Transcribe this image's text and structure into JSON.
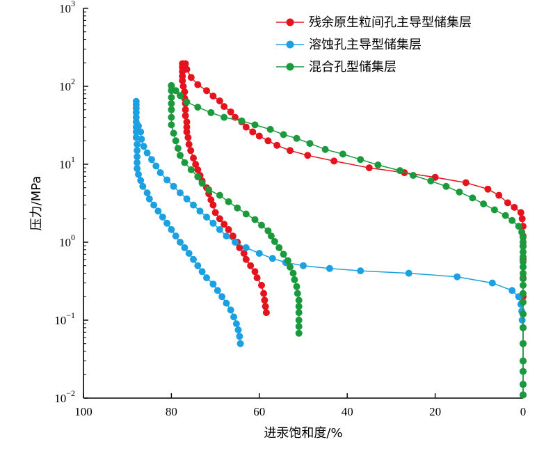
{
  "chart_data": {
    "type": "line",
    "xlabel": "进汞饱和度/%",
    "ylabel": "压力/MPa",
    "x_axis": {
      "min": 0,
      "max": 100,
      "reversed": true,
      "ticks": [
        100,
        80,
        60,
        40,
        20,
        0
      ]
    },
    "y_axis": {
      "scale": "log",
      "min": 0.01,
      "max": 1000,
      "ticks": [
        {
          "value": 0.01,
          "base": "10",
          "exp": "−2"
        },
        {
          "value": 0.1,
          "base": "10",
          "exp": "−1"
        },
        {
          "value": 1,
          "base": "10",
          "exp": "0"
        },
        {
          "value": 10,
          "base": "10",
          "exp": "1"
        },
        {
          "value": 100,
          "base": "10",
          "exp": "2"
        },
        {
          "value": 1000,
          "base": "10",
          "exp": "3"
        }
      ]
    },
    "grid": false,
    "legend_position": "top-right",
    "series": [
      {
        "name": "残余原生粒间孔主导型储集层",
        "color": "#e3141e",
        "intrusion": [
          [
            0,
            0.011
          ],
          [
            0,
            0.015
          ],
          [
            0,
            0.022
          ],
          [
            0,
            0.03
          ],
          [
            0,
            0.05
          ],
          [
            0,
            0.08
          ],
          [
            0,
            0.12
          ],
          [
            0,
            0.2
          ],
          [
            0,
            0.35
          ],
          [
            0,
            0.6
          ],
          [
            0,
            0.9
          ],
          [
            0,
            1.2
          ],
          [
            0,
            1.6
          ],
          [
            0.2,
            2.0
          ],
          [
            0.5,
            2.4
          ],
          [
            2,
            2.8
          ],
          [
            3.5,
            3.2
          ],
          [
            5.5,
            4.0
          ],
          [
            8,
            4.8
          ],
          [
            13,
            5.8
          ],
          [
            20,
            6.8
          ],
          [
            27,
            7.8
          ],
          [
            35,
            9.0
          ],
          [
            43,
            11
          ],
          [
            49,
            13
          ],
          [
            53,
            15
          ],
          [
            56,
            17.5
          ],
          [
            58,
            20
          ],
          [
            60,
            23
          ],
          [
            61.5,
            26
          ],
          [
            63,
            30
          ],
          [
            64,
            35
          ],
          [
            65.5,
            40
          ],
          [
            66.5,
            47
          ],
          [
            68,
            55
          ],
          [
            69,
            65
          ],
          [
            70.5,
            75
          ],
          [
            72,
            88
          ],
          [
            74,
            105
          ],
          [
            75.5,
            130
          ],
          [
            76.5,
            165
          ],
          [
            76.8,
            195
          ]
        ],
        "extrusion": [
          [
            77.5,
            195
          ],
          [
            77.5,
            175
          ],
          [
            77.5,
            155
          ],
          [
            77.5,
            135
          ],
          [
            77.5,
            118
          ],
          [
            77.3,
            100
          ],
          [
            77,
            85
          ],
          [
            77,
            70
          ],
          [
            76.8,
            60
          ],
          [
            76.8,
            50
          ],
          [
            76.8,
            42
          ],
          [
            76.5,
            35
          ],
          [
            76.5,
            30
          ],
          [
            76.5,
            26
          ],
          [
            76.2,
            22
          ],
          [
            76,
            18
          ],
          [
            75.6,
            15
          ],
          [
            75,
            12
          ],
          [
            74.5,
            10
          ],
          [
            74,
            8.5
          ],
          [
            73.5,
            7.2
          ],
          [
            73,
            6.1
          ],
          [
            72,
            5
          ],
          [
            71.5,
            4.2
          ],
          [
            71,
            3.5
          ],
          [
            70.5,
            3.0
          ],
          [
            70,
            2.4
          ],
          [
            69,
            2.0
          ],
          [
            68,
            1.7
          ],
          [
            67,
            1.45
          ],
          [
            66,
            1.2
          ],
          [
            65,
            1.0
          ],
          [
            64.5,
            0.85
          ],
          [
            63.5,
            0.72
          ],
          [
            63,
            0.6
          ],
          [
            62,
            0.5
          ],
          [
            61,
            0.42
          ],
          [
            60.5,
            0.35
          ],
          [
            59.5,
            0.28
          ],
          [
            59,
            0.22
          ],
          [
            58.8,
            0.18
          ],
          [
            58.6,
            0.15
          ],
          [
            58.4,
            0.125
          ]
        ]
      },
      {
        "name": "溶蚀孔主导型储集层",
        "color": "#1ba1e2",
        "intrusion": [
          [
            0,
            0.011
          ],
          [
            0,
            0.015
          ],
          [
            0,
            0.022
          ],
          [
            0,
            0.03
          ],
          [
            0,
            0.05
          ],
          [
            0,
            0.08
          ],
          [
            0.2,
            0.1
          ],
          [
            0.3,
            0.13
          ],
          [
            0.5,
            0.16
          ],
          [
            1,
            0.2
          ],
          [
            2.5,
            0.24
          ],
          [
            7,
            0.3
          ],
          [
            15,
            0.36
          ],
          [
            26,
            0.4
          ],
          [
            37,
            0.43
          ],
          [
            44,
            0.46
          ],
          [
            50,
            0.5
          ],
          [
            54,
            0.55
          ],
          [
            57,
            0.62
          ],
          [
            60,
            0.72
          ],
          [
            63,
            0.85
          ],
          [
            65.5,
            1.0
          ],
          [
            67.5,
            1.2
          ],
          [
            69,
            1.45
          ],
          [
            70.5,
            1.75
          ],
          [
            72,
            2.1
          ],
          [
            73.5,
            2.5
          ],
          [
            75,
            3.0
          ],
          [
            76.5,
            3.6
          ],
          [
            78,
            4.3
          ],
          [
            79.5,
            5.2
          ],
          [
            81,
            6.3
          ],
          [
            82.5,
            7.8
          ],
          [
            83.5,
            9.5
          ],
          [
            84.5,
            11.5
          ],
          [
            85.5,
            14
          ],
          [
            86.3,
            17
          ],
          [
            86.8,
            21
          ],
          [
            87,
            26
          ],
          [
            87.5,
            31
          ]
        ],
        "extrusion": [
          [
            88,
            64
          ],
          [
            88,
            58
          ],
          [
            88,
            52
          ],
          [
            88,
            46
          ],
          [
            88,
            40
          ],
          [
            88,
            35
          ],
          [
            88,
            30
          ],
          [
            88,
            26
          ],
          [
            88,
            22
          ],
          [
            87.8,
            18
          ],
          [
            87.8,
            15
          ],
          [
            87.8,
            12.5
          ],
          [
            87.8,
            10.5
          ],
          [
            87.8,
            8.8
          ],
          [
            87.5,
            7.4
          ],
          [
            87,
            6.2
          ],
          [
            86.5,
            5.2
          ],
          [
            85.5,
            4.3
          ],
          [
            85,
            3.6
          ],
          [
            84,
            3.0
          ],
          [
            83,
            2.5
          ],
          [
            82,
            2.1
          ],
          [
            81,
            1.75
          ],
          [
            80,
            1.45
          ],
          [
            79,
            1.2
          ],
          [
            78,
            1.0
          ],
          [
            77,
            0.85
          ],
          [
            76,
            0.72
          ],
          [
            75,
            0.6
          ],
          [
            74,
            0.5
          ],
          [
            73,
            0.42
          ],
          [
            72,
            0.35
          ],
          [
            70.5,
            0.29
          ],
          [
            69.5,
            0.24
          ],
          [
            68.5,
            0.2
          ],
          [
            67.5,
            0.165
          ],
          [
            66.5,
            0.135
          ],
          [
            65.8,
            0.11
          ],
          [
            65.2,
            0.09
          ],
          [
            64.8,
            0.075
          ],
          [
            64.5,
            0.062
          ],
          [
            64.3,
            0.05
          ]
        ]
      },
      {
        "name": "混合孔型储集层",
        "color": "#1a9a3c",
        "intrusion": [
          [
            0,
            0.011
          ],
          [
            0,
            0.015
          ],
          [
            0,
            0.022
          ],
          [
            0,
            0.03
          ],
          [
            0,
            0.05
          ],
          [
            0,
            0.08
          ],
          [
            0,
            0.12
          ],
          [
            0,
            0.17
          ],
          [
            0,
            0.22
          ],
          [
            0,
            0.28
          ],
          [
            0,
            0.34
          ],
          [
            0,
            0.4
          ],
          [
            0,
            0.48
          ],
          [
            0,
            0.56
          ],
          [
            0,
            0.65
          ],
          [
            0,
            0.75
          ],
          [
            0,
            0.88
          ],
          [
            0,
            1.0
          ],
          [
            0,
            1.15
          ],
          [
            0.3,
            1.35
          ],
          [
            1,
            1.6
          ],
          [
            2.5,
            1.9
          ],
          [
            4,
            2.2
          ],
          [
            6.5,
            2.6
          ],
          [
            9,
            3.1
          ],
          [
            11.5,
            3.7
          ],
          [
            14.5,
            4.4
          ],
          [
            17.5,
            5.2
          ],
          [
            21,
            6.1
          ],
          [
            25,
            7.2
          ],
          [
            28,
            8.3
          ],
          [
            33,
            9.8
          ],
          [
            37,
            11.5
          ],
          [
            41,
            13.5
          ],
          [
            45,
            15.5
          ],
          [
            48.5,
            18.5
          ],
          [
            51.5,
            21.5
          ],
          [
            54.5,
            24
          ],
          [
            57.5,
            28
          ],
          [
            61,
            32
          ],
          [
            64,
            36
          ],
          [
            68,
            40
          ],
          [
            71,
            46
          ],
          [
            74,
            54
          ],
          [
            76.5,
            63
          ],
          [
            78,
            76
          ],
          [
            79,
            88
          ],
          [
            80,
            102
          ]
        ],
        "extrusion": [
          [
            80,
            102
          ],
          [
            80,
            88
          ],
          [
            80,
            72
          ],
          [
            80,
            60
          ],
          [
            80,
            50
          ],
          [
            80,
            40
          ],
          [
            80,
            32
          ],
          [
            79.5,
            25
          ],
          [
            79,
            20
          ],
          [
            78.5,
            16
          ],
          [
            78,
            13
          ],
          [
            77,
            10.5
          ],
          [
            75.5,
            8.5
          ],
          [
            74,
            6.9
          ],
          [
            73,
            5.7
          ],
          [
            71.5,
            4.7
          ],
          [
            69,
            4.0
          ],
          [
            67,
            3.3
          ],
          [
            65,
            2.75
          ],
          [
            63,
            2.3
          ],
          [
            61,
            1.95
          ],
          [
            59.5,
            1.65
          ],
          [
            58,
            1.4
          ],
          [
            57.3,
            1.2
          ],
          [
            56.5,
            1.02
          ],
          [
            55.5,
            0.85
          ],
          [
            54.5,
            0.7
          ],
          [
            53.5,
            0.58
          ],
          [
            53,
            0.48
          ],
          [
            52.3,
            0.4
          ],
          [
            52,
            0.33
          ],
          [
            51.5,
            0.27
          ],
          [
            51.3,
            0.22
          ],
          [
            51,
            0.18
          ],
          [
            51,
            0.15
          ],
          [
            51,
            0.125
          ],
          [
            51,
            0.1
          ],
          [
            51,
            0.083
          ],
          [
            51,
            0.068
          ]
        ]
      }
    ]
  }
}
